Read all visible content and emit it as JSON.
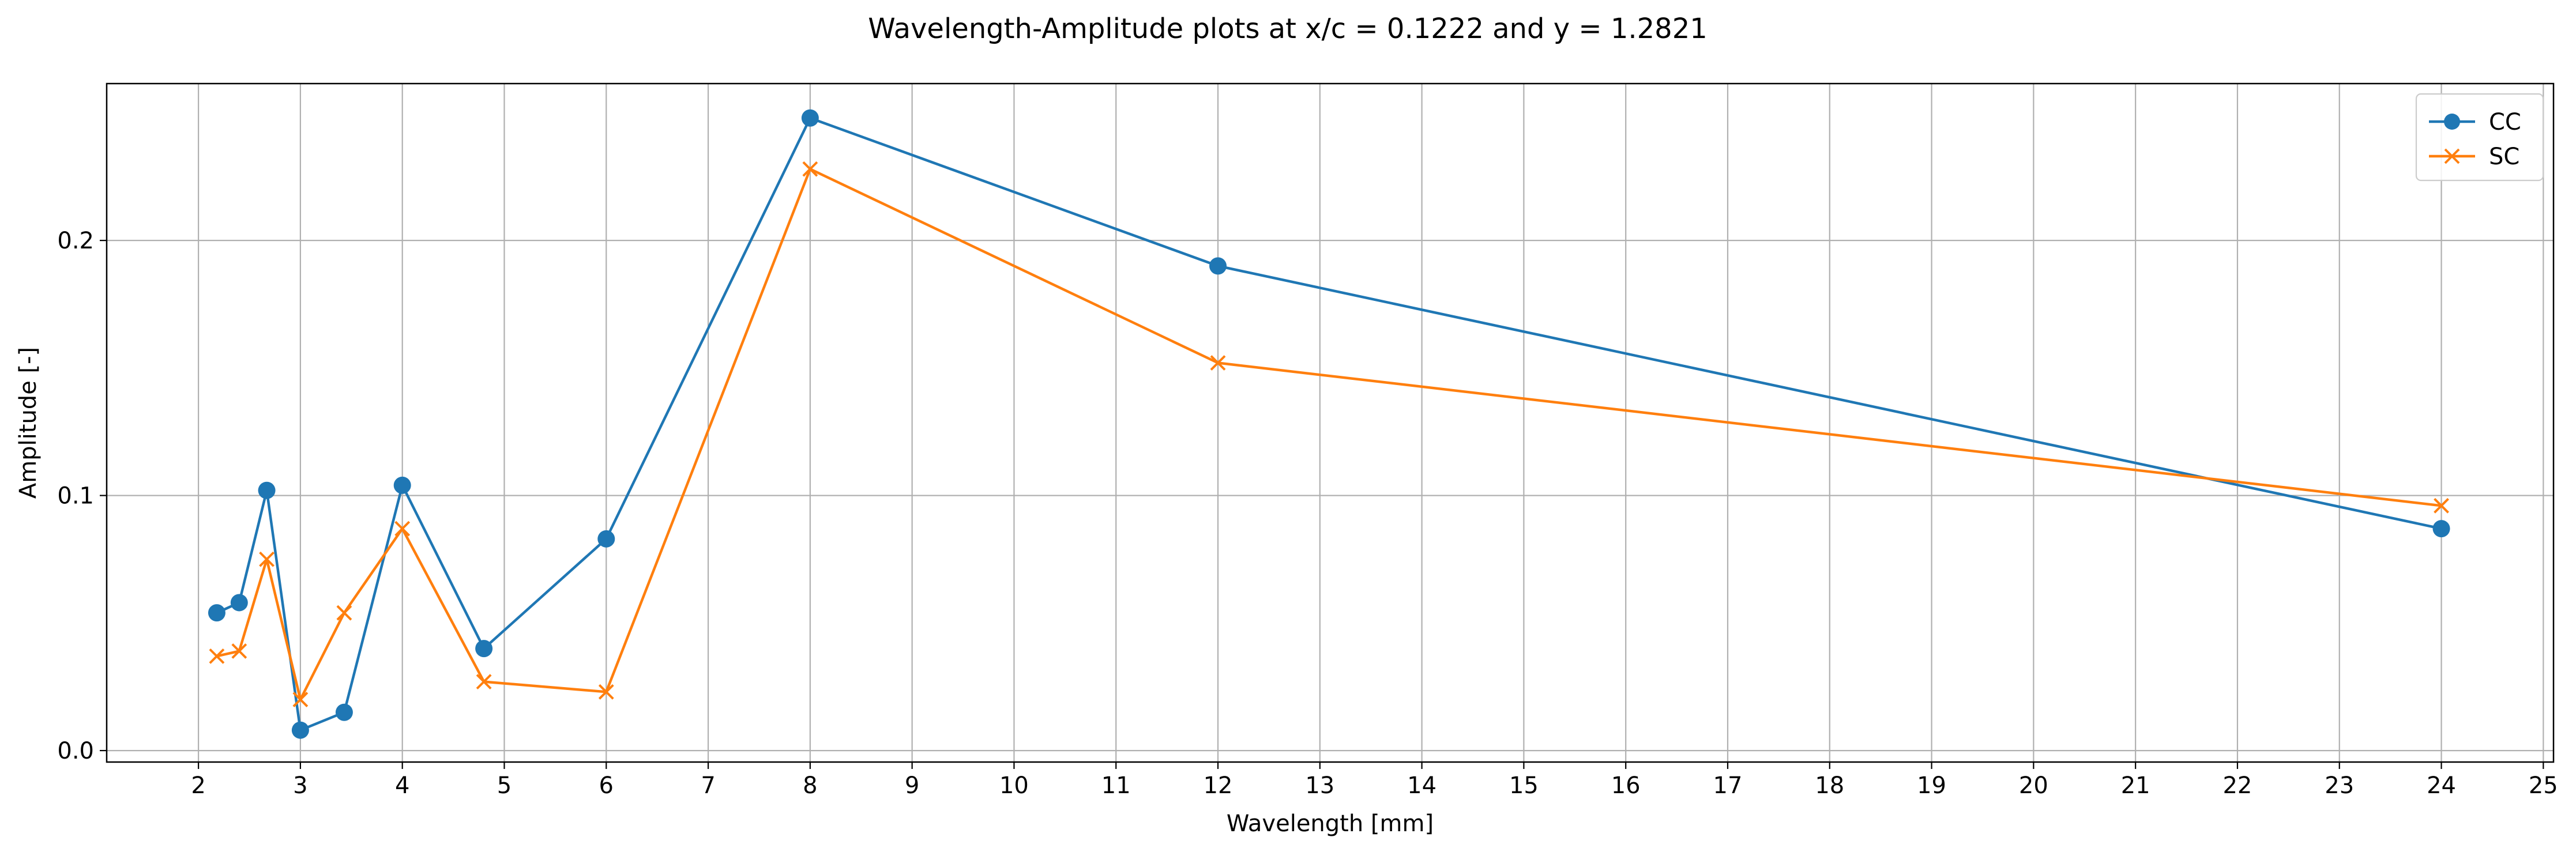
{
  "chart_data": {
    "type": "line",
    "title": "Wavelength-Amplitude plots at x/c = 0.1222 and y = 1.2821",
    "xlabel": "Wavelength [mm]",
    "ylabel": "Amplitude [-]",
    "xlim": [
      1.1,
      25.1
    ],
    "ylim": [
      -0.0045,
      0.2615
    ],
    "x_ticks": [
      2,
      3,
      4,
      5,
      6,
      7,
      8,
      9,
      10,
      11,
      12,
      13,
      14,
      15,
      16,
      17,
      18,
      19,
      20,
      21,
      22,
      23,
      24,
      25
    ],
    "y_ticks": [
      0.0,
      0.1,
      0.2
    ],
    "x_tick_labels": [
      "2",
      "3",
      "4",
      "5",
      "6",
      "7",
      "8",
      "9",
      "10",
      "11",
      "12",
      "13",
      "14",
      "15",
      "16",
      "17",
      "18",
      "19",
      "20",
      "21",
      "22",
      "23",
      "24",
      "25"
    ],
    "y_tick_labels": [
      "0.0",
      "0.1",
      "0.2"
    ],
    "grid": true,
    "legend_position": "top-right",
    "series": [
      {
        "name": "CC",
        "color": "#1f77b4",
        "marker": "circle",
        "x": [
          2.18,
          2.4,
          2.67,
          3.0,
          3.43,
          4.0,
          4.8,
          6.0,
          8.0,
          12.0,
          24.0
        ],
        "y": [
          0.054,
          0.058,
          0.102,
          0.008,
          0.015,
          0.104,
          0.04,
          0.083,
          0.248,
          0.19,
          0.087
        ]
      },
      {
        "name": "SC",
        "color": "#ff7f0e",
        "marker": "x",
        "x": [
          2.18,
          2.4,
          2.67,
          3.0,
          3.43,
          4.0,
          4.8,
          6.0,
          8.0,
          12.0,
          24.0
        ],
        "y": [
          0.037,
          0.039,
          0.075,
          0.02,
          0.054,
          0.087,
          0.027,
          0.023,
          0.228,
          0.152,
          0.096
        ]
      }
    ]
  }
}
